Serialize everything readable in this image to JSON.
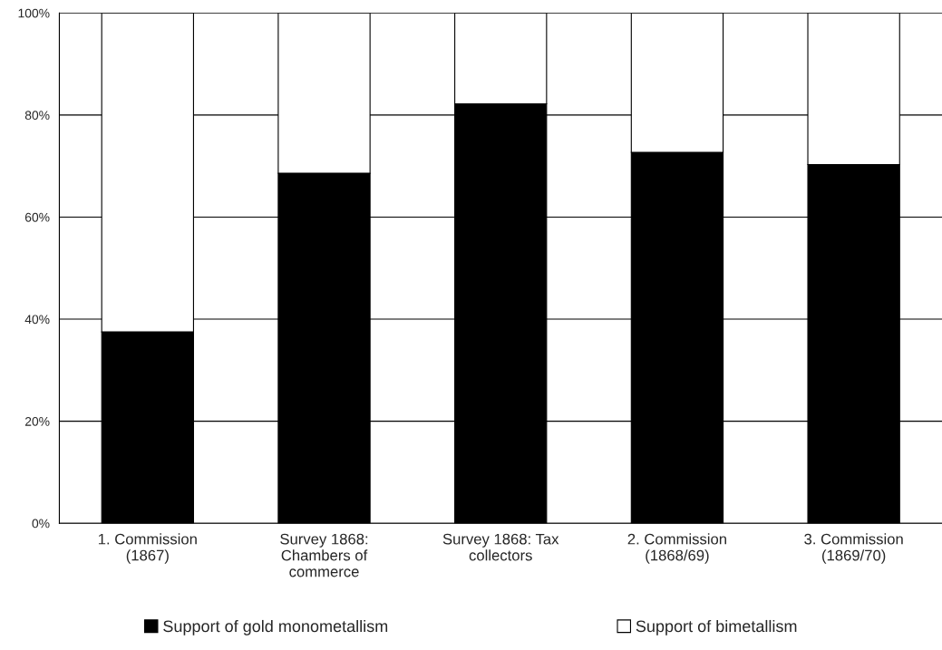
{
  "chart_data": {
    "type": "bar",
    "stacked": true,
    "categories": [
      "1. Commission\n(1867)",
      "Survey 1868:\nChambers of\ncommerce",
      "Survey 1868: Tax\ncollectors",
      "2. Commission\n(1868/69)",
      "3. Commission\n(1869/70)"
    ],
    "series": [
      {
        "name": "Support of gold monometallism",
        "color": "#000000",
        "values": [
          37.5,
          68.6,
          82.2,
          72.7,
          70.3
        ]
      },
      {
        "name": "Support of bimetallism",
        "color": "#ffffff",
        "values": [
          62.5,
          31.4,
          17.8,
          27.3,
          29.7
        ]
      }
    ],
    "ylim": [
      0,
      100
    ],
    "yticks": [
      {
        "value": 0,
        "label": "0%"
      },
      {
        "value": 20,
        "label": "20%"
      },
      {
        "value": 40,
        "label": "40%"
      },
      {
        "value": 60,
        "label": "60%"
      },
      {
        "value": 80,
        "label": "80%"
      },
      {
        "value": 100,
        "label": "100%"
      }
    ],
    "grid": "y",
    "legend": "bottom"
  }
}
